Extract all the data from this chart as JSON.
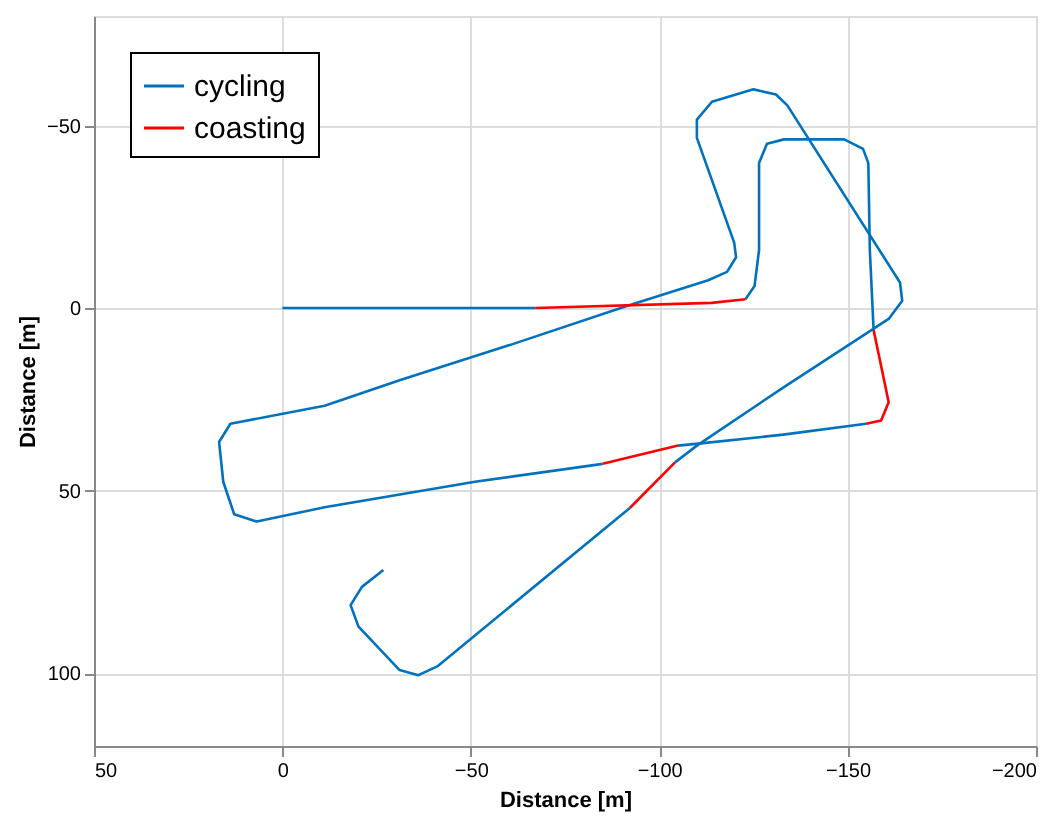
{
  "chart_data": {
    "type": "line",
    "xlabel": "Distance [m]",
    "ylabel": "Distance [m]",
    "xlim": [
      50,
      -200
    ],
    "xticks": [
      50,
      0,
      -50,
      -100,
      -150,
      -200
    ],
    "ylim": [
      120,
      -80
    ],
    "yticks": [
      -50,
      0,
      50,
      100
    ],
    "grid": true,
    "legend": "top left",
    "line_style": "solid",
    "marker": "none",
    "series": [
      {
        "name": "cycling",
        "color": "#0072bd",
        "x": [
          0,
          -67.1,
          null,
          -122.9,
          -125.3,
          -126.5,
          -126.5,
          -128.6,
          -133.1,
          -149.1,
          -154.1,
          -155.5,
          -155.9,
          -156.9,
          null,
          -154.9,
          -132.9,
          -111.0,
          -105.0,
          null,
          -85.0,
          -51.1,
          -11.2,
          6.8,
          12.8,
          15.7,
          16.8,
          13.8,
          -11.2,
          -31.1,
          -61.1,
          -91.0,
          -113.0,
          -118.0,
          -120.4,
          -119.9,
          -110.0,
          -110.0,
          -114.0,
          -125.0,
          -131.0,
          -134.0,
          -163.9,
          -164.5,
          -160.9,
          -132.9,
          -110.0,
          -104.2,
          null,
          -92.2,
          -41.1,
          -36.1,
          -31.1,
          -20.2,
          -18.1,
          -21.1,
          -26.8
        ],
        "values": [
          0,
          0,
          null,
          -2.4,
          -6.0,
          -15.9,
          -39.7,
          -45.0,
          -46.2,
          -46.2,
          -43.6,
          -39.7,
          -15.9,
          6.0,
          null,
          31.7,
          34.7,
          37.1,
          37.7,
          null,
          42.7,
          47.6,
          54.6,
          58.5,
          56.5,
          47.6,
          36.7,
          31.7,
          26.8,
          19.8,
          9.9,
          -0.4,
          -7.6,
          -9.9,
          -13.9,
          -17.9,
          -46.6,
          -51.6,
          -56.5,
          -59.9,
          -58.5,
          -55.5,
          -7.0,
          -2.0,
          3.0,
          21.8,
          37.7,
          42.3,
          null,
          54.8,
          98.2,
          100.6,
          99.2,
          87.3,
          81.4,
          76.4,
          71.8
        ]
      },
      {
        "name": "coasting",
        "color": "#ff0000",
        "x": [
          -67.1,
          -113.9,
          -122.9,
          null,
          -156.9,
          -159.3,
          -160.9,
          -158.9,
          -154.9,
          null,
          -105.0,
          -85.0,
          null,
          -104.2,
          -92.2
        ],
        "values": [
          0,
          -1.4,
          -2.4,
          null,
          6.0,
          17.9,
          25.8,
          30.8,
          31.7,
          null,
          37.7,
          42.7,
          null,
          42.3,
          54.8
        ]
      }
    ]
  }
}
